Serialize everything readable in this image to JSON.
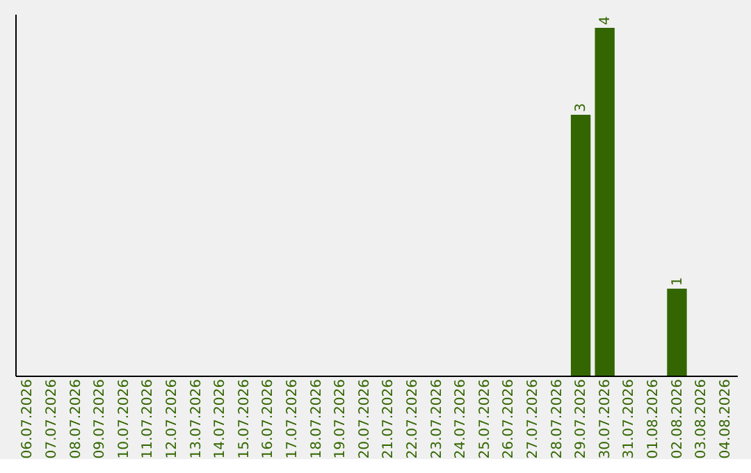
{
  "chart_data": {
    "type": "bar",
    "categories": [
      "06.07.2026",
      "07.07.2026",
      "08.07.2026",
      "09.07.2026",
      "10.07.2026",
      "11.07.2026",
      "12.07.2026",
      "13.07.2026",
      "14.07.2026",
      "15.07.2026",
      "16.07.2026",
      "17.07.2026",
      "18.07.2026",
      "19.07.2026",
      "20.07.2026",
      "21.07.2026",
      "22.07.2026",
      "23.07.2026",
      "24.07.2026",
      "25.07.2026",
      "26.07.2026",
      "27.07.2026",
      "28.07.2026",
      "29.07.2026",
      "30.07.2026",
      "31.07.2026",
      "01.08.2026",
      "02.08.2026",
      "03.08.2026",
      "04.08.2026"
    ],
    "values": [
      null,
      null,
      null,
      null,
      null,
      null,
      null,
      null,
      null,
      null,
      null,
      null,
      null,
      null,
      null,
      null,
      null,
      null,
      null,
      null,
      null,
      null,
      null,
      3,
      4,
      null,
      null,
      1,
      null,
      null
    ],
    "color": "#336600",
    "ylim": [
      0,
      4.16
    ],
    "data_labels": true,
    "tick_labels": "x",
    "grid": false
  }
}
